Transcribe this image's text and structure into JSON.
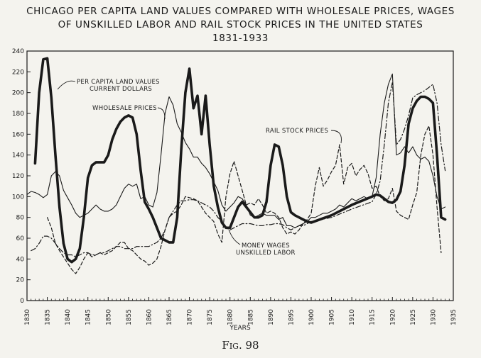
{
  "title": {
    "line1": "CHICAGO PER CAPITA LAND VALUES COMPARED WITH WHOLESALE PRICES, WAGES",
    "line2": "OF UNSKILLED LABOR AND RAIL STOCK PRICES IN THE UNITED STATES",
    "line3": "1831-1933"
  },
  "caption": "Fig. 98",
  "colors": {
    "ink": "#1a1a1a",
    "paper": "#f4f3ee"
  },
  "chart_data": {
    "type": "line",
    "title": "CHICAGO PER CAPITA LAND VALUES COMPARED WITH WHOLESALE PRICES, WAGES OF UNSKILLED LABOR AND RAIL STOCK PRICES IN THE UNITED STATES 1831-1933",
    "xlabel": "YEARS",
    "ylabel": "",
    "xlim": [
      1830,
      1935
    ],
    "ylim": [
      0,
      240
    ],
    "xticks": [
      1830,
      1835,
      1840,
      1845,
      1850,
      1855,
      1860,
      1865,
      1870,
      1875,
      1880,
      1885,
      1890,
      1895,
      1900,
      1905,
      1910,
      1915,
      1920,
      1925,
      1930,
      1935
    ],
    "yticks": [
      0,
      20,
      40,
      60,
      80,
      100,
      120,
      140,
      160,
      180,
      200,
      220,
      240
    ],
    "grid": false,
    "legend": "none (series labeled inline)",
    "annotations": [
      "PER CAPITA LAND VALUES CURRENT DOLLARS",
      "WHOLESALE PRICES",
      "RAIL STOCK PRICES",
      "MONEY WAGES UNSKILLED LABOR"
    ],
    "series": [
      {
        "name": "PER CAPITA LAND VALUES CURRENT DOLLARS",
        "style": "thick-solid",
        "x": [
          1832,
          1833,
          1834,
          1835,
          1836,
          1837,
          1838,
          1839,
          1840,
          1841,
          1842,
          1843,
          1844,
          1845,
          1846,
          1847,
          1848,
          1849,
          1850,
          1851,
          1852,
          1853,
          1854,
          1855,
          1856,
          1857,
          1858,
          1859,
          1860,
          1861,
          1862,
          1863,
          1864,
          1865,
          1866,
          1867,
          1868,
          1869,
          1870,
          1871,
          1872,
          1873,
          1874,
          1875,
          1876,
          1877,
          1878,
          1879,
          1880,
          1881,
          1882,
          1883,
          1884,
          1885,
          1886,
          1887,
          1888,
          1889,
          1890,
          1891,
          1892,
          1893,
          1894,
          1895,
          1896,
          1897,
          1898,
          1899,
          1900,
          1905,
          1910,
          1915,
          1916,
          1917,
          1918,
          1919,
          1920,
          1921,
          1922,
          1923,
          1924,
          1925,
          1926,
          1927,
          1928,
          1929,
          1930,
          1931,
          1932,
          1933
        ],
        "values": [
          132,
          200,
          232,
          233,
          195,
          140,
          90,
          55,
          40,
          37,
          40,
          50,
          80,
          118,
          130,
          133,
          133,
          133,
          140,
          155,
          165,
          172,
          176,
          178,
          176,
          160,
          125,
          95,
          88,
          80,
          70,
          60,
          58,
          56,
          56,
          80,
          145,
          200,
          223,
          185,
          197,
          160,
          197,
          150,
          110,
          90,
          75,
          70,
          70,
          80,
          90,
          95,
          90,
          85,
          80,
          80,
          82,
          95,
          130,
          150,
          148,
          130,
          100,
          85,
          82,
          80,
          78,
          76,
          75,
          82,
          92,
          100,
          102,
          101,
          98,
          95,
          94,
          97,
          105,
          130,
          170,
          185,
          192,
          196,
          196,
          194,
          190,
          140,
          80,
          78
        ]
      },
      {
        "name": "WHOLESALE PRICES",
        "style": "thin-solid",
        "x": [
          1830,
          1831,
          1832,
          1833,
          1834,
          1835,
          1836,
          1837,
          1838,
          1839,
          1840,
          1841,
          1842,
          1843,
          1844,
          1845,
          1846,
          1847,
          1848,
          1849,
          1850,
          1851,
          1852,
          1853,
          1854,
          1855,
          1856,
          1857,
          1858,
          1859,
          1860,
          1861,
          1862,
          1863,
          1864,
          1865,
          1866,
          1867,
          1868,
          1869,
          1870,
          1871,
          1872,
          1873,
          1874,
          1875,
          1876,
          1877,
          1878,
          1879,
          1880,
          1881,
          1882,
          1883,
          1884,
          1885,
          1886,
          1887,
          1888,
          1889,
          1890,
          1891,
          1892,
          1893,
          1894,
          1895,
          1896,
          1897,
          1898,
          1899,
          1900,
          1901,
          1902,
          1903,
          1904,
          1905,
          1906,
          1907,
          1908,
          1909,
          1910,
          1911,
          1912,
          1913,
          1914,
          1915,
          1916,
          1917,
          1918,
          1919,
          1920,
          1921,
          1922,
          1923,
          1924,
          1925,
          1926,
          1927,
          1928,
          1929,
          1930,
          1931,
          1932,
          1933
        ],
        "values": [
          102,
          105,
          104,
          102,
          99,
          102,
          120,
          124,
          120,
          106,
          99,
          92,
          84,
          80,
          82,
          84,
          88,
          92,
          88,
          86,
          86,
          88,
          92,
          100,
          108,
          112,
          110,
          112,
          98,
          100,
          92,
          90,
          104,
          140,
          180,
          196,
          188,
          170,
          162,
          152,
          146,
          138,
          138,
          132,
          128,
          122,
          114,
          106,
          92,
          86,
          90,
          94,
          100,
          98,
          92,
          82,
          80,
          82,
          84,
          82,
          82,
          82,
          78,
          80,
          72,
          72,
          70,
          72,
          74,
          76,
          80,
          80,
          82,
          84,
          84,
          86,
          88,
          92,
          90,
          94,
          98,
          96,
          98,
          100,
          98,
          100,
          118,
          160,
          190,
          208,
          218,
          140,
          142,
          148,
          142,
          148,
          140,
          136,
          138,
          134,
          120,
          100,
          88,
          90
        ]
      },
      {
        "name": "RAIL STOCK PRICES",
        "style": "dashed",
        "x": [
          1835,
          1836,
          1837,
          1838,
          1839,
          1840,
          1841,
          1842,
          1843,
          1844,
          1845,
          1846,
          1847,
          1848,
          1849,
          1850,
          1851,
          1852,
          1853,
          1854,
          1855,
          1856,
          1857,
          1858,
          1859,
          1860,
          1861,
          1862,
          1863,
          1864,
          1865,
          1866,
          1867,
          1868,
          1869,
          1870,
          1871,
          1872,
          1873,
          1874,
          1875,
          1876,
          1877,
          1878,
          1879,
          1880,
          1881,
          1882,
          1883,
          1884,
          1885,
          1886,
          1887,
          1888,
          1889,
          1890,
          1891,
          1892,
          1893,
          1894,
          1895,
          1896,
          1897,
          1898,
          1899,
          1900,
          1901,
          1902,
          1903,
          1904,
          1905,
          1906,
          1907,
          1908,
          1909,
          1910,
          1911,
          1912,
          1913,
          1914,
          1915,
          1916,
          1917,
          1918,
          1919,
          1920,
          1921,
          1922,
          1923,
          1924,
          1925,
          1926,
          1927,
          1928,
          1929,
          1930,
          1931,
          1932
        ],
        "values": [
          80,
          70,
          55,
          48,
          42,
          36,
          30,
          26,
          32,
          40,
          46,
          42,
          44,
          46,
          44,
          46,
          48,
          52,
          56,
          56,
          50,
          48,
          44,
          40,
          38,
          34,
          36,
          40,
          52,
          68,
          80,
          84,
          86,
          92,
          100,
          99,
          98,
          96,
          90,
          84,
          80,
          76,
          64,
          56,
          100,
          122,
          134,
          120,
          106,
          92,
          94,
          92,
          98,
          92,
          84,
          86,
          84,
          80,
          70,
          64,
          66,
          64,
          68,
          74,
          78,
          84,
          110,
          128,
          110,
          116,
          124,
          130,
          150,
          112,
          128,
          132,
          120,
          126,
          130,
          122,
          108,
          110,
          100,
          96,
          98,
          108,
          86,
          82,
          80,
          78,
          92,
          104,
          140,
          160,
          168,
          140,
          90,
          46
        ]
      },
      {
        "name": "MONEY WAGES UNSKILLED LABOR",
        "style": "dash-dot",
        "x": [
          1831,
          1832,
          1833,
          1834,
          1835,
          1836,
          1837,
          1838,
          1839,
          1840,
          1841,
          1842,
          1843,
          1844,
          1845,
          1846,
          1847,
          1848,
          1849,
          1850,
          1851,
          1852,
          1853,
          1854,
          1855,
          1856,
          1857,
          1858,
          1859,
          1860,
          1861,
          1862,
          1863,
          1864,
          1865,
          1866,
          1867,
          1868,
          1869,
          1870,
          1871,
          1872,
          1873,
          1874,
          1875,
          1876,
          1877,
          1878,
          1879,
          1880,
          1881,
          1882,
          1883,
          1884,
          1885,
          1886,
          1887,
          1888,
          1889,
          1890,
          1891,
          1892,
          1893,
          1894,
          1895,
          1896,
          1897,
          1898,
          1899,
          1900,
          1905,
          1910,
          1915,
          1916,
          1917,
          1918,
          1919,
          1920,
          1921,
          1922,
          1923,
          1924,
          1925,
          1926,
          1927,
          1928,
          1929,
          1930,
          1931,
          1932,
          1933
        ],
        "values": [
          48,
          50,
          55,
          62,
          62,
          60,
          55,
          50,
          46,
          44,
          44,
          42,
          44,
          46,
          46,
          44,
          44,
          46,
          46,
          48,
          50,
          52,
          52,
          50,
          50,
          50,
          52,
          52,
          52,
          52,
          54,
          56,
          60,
          68,
          80,
          86,
          92,
          96,
          96,
          97,
          97,
          96,
          94,
          92,
          90,
          86,
          80,
          76,
          70,
          68,
          70,
          72,
          74,
          74,
          74,
          73,
          72,
          72,
          73,
          73,
          74,
          74,
          73,
          70,
          68,
          70,
          72,
          72,
          74,
          76,
          80,
          88,
          95,
          102,
          115,
          150,
          190,
          210,
          150,
          155,
          165,
          178,
          195,
          198,
          200,
          202,
          205,
          208,
          190,
          150,
          125
        ]
      }
    ]
  }
}
